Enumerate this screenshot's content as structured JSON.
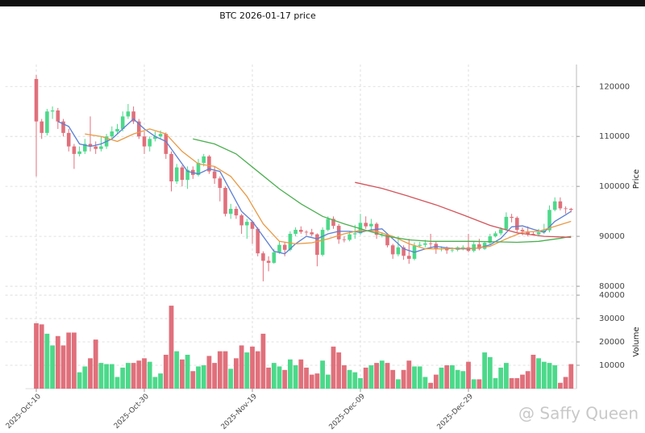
{
  "chart_data": {
    "type": "candlestick",
    "title": "BTC  2026-01-17  price",
    "ylabel": "Price",
    "volume_label": "Volume",
    "watermark": "@ Saffy Queen",
    "x": [
      "2025-10-10",
      "2025-10-11",
      "2025-10-12",
      "2025-10-13",
      "2025-10-14",
      "2025-10-15",
      "2025-10-16",
      "2025-10-17",
      "2025-10-18",
      "2025-10-19",
      "2025-10-20",
      "2025-10-21",
      "2025-10-22",
      "2025-10-23",
      "2025-10-24",
      "2025-10-25",
      "2025-10-26",
      "2025-10-27",
      "2025-10-28",
      "2025-10-29",
      "2025-10-30",
      "2025-10-31",
      "2025-11-01",
      "2025-11-02",
      "2025-11-03",
      "2025-11-04",
      "2025-11-05",
      "2025-11-06",
      "2025-11-07",
      "2025-11-08",
      "2025-11-09",
      "2025-11-10",
      "2025-11-11",
      "2025-11-12",
      "2025-11-13",
      "2025-11-14",
      "2025-11-15",
      "2025-11-16",
      "2025-11-17",
      "2025-11-18",
      "2025-11-19",
      "2025-11-20",
      "2025-11-21",
      "2025-11-22",
      "2025-11-23",
      "2025-11-24",
      "2025-11-25",
      "2025-11-26",
      "2025-11-27",
      "2025-11-28",
      "2025-11-29",
      "2025-11-30",
      "2025-12-01",
      "2025-12-02",
      "2025-12-03",
      "2025-12-04",
      "2025-12-05",
      "2025-12-06",
      "2025-12-07",
      "2025-12-08",
      "2025-12-09",
      "2025-12-10",
      "2025-12-11",
      "2025-12-12",
      "2025-12-13",
      "2025-12-14",
      "2025-12-15",
      "2025-12-16",
      "2025-12-17",
      "2025-12-18",
      "2025-12-19",
      "2025-12-20",
      "2025-12-21",
      "2025-12-22",
      "2025-12-23",
      "2025-12-24",
      "2025-12-25",
      "2025-12-26",
      "2025-12-27",
      "2025-12-28",
      "2025-12-29",
      "2025-12-30",
      "2025-12-31",
      "2026-01-01",
      "2026-01-02",
      "2026-01-03",
      "2026-01-04",
      "2026-01-05",
      "2026-01-06",
      "2026-01-07",
      "2026-01-08",
      "2026-01-09",
      "2026-01-10",
      "2026-01-11",
      "2026-01-12",
      "2026-01-13",
      "2026-01-14",
      "2026-01-15",
      "2026-01-16",
      "2026-01-17"
    ],
    "open": [
      121500,
      113000,
      110700,
      115000,
      115200,
      113000,
      110700,
      108000,
      106500,
      107000,
      108500,
      108000,
      107500,
      108000,
      110000,
      111000,
      111500,
      114000,
      115000,
      113000,
      110000,
      108000,
      109500,
      110000,
      110500,
      106500,
      101000,
      103800,
      101300,
      103300,
      102300,
      104700,
      106000,
      103000,
      101600,
      99700,
      94500,
      95500,
      94200,
      92200,
      92900,
      91500,
      86600,
      85100,
      84700,
      86800,
      88300,
      87300,
      90500,
      91300,
      90900,
      90800,
      90400,
      86300,
      91300,
      93500,
      92100,
      89400,
      89300,
      90400,
      90600,
      92700,
      92000,
      92500,
      90300,
      90300,
      88200,
      86400,
      87800,
      86100,
      85500,
      88100,
      88300,
      88600,
      88500,
      87400,
      87600,
      87200,
      87300,
      87800,
      87800,
      87100,
      88400,
      87500,
      88700,
      90000,
      90600,
      91400,
      93900,
      93700,
      91300,
      91000,
      90500,
      90400,
      90800,
      91200,
      95300,
      97000,
      95600,
      95500
    ],
    "high": [
      122300,
      113500,
      115500,
      116000,
      115700,
      113500,
      111500,
      108500,
      108000,
      109500,
      114000,
      109000,
      110000,
      110500,
      112000,
      112500,
      115000,
      116500,
      116000,
      113500,
      111000,
      110000,
      111000,
      111200,
      110800,
      107000,
      104500,
      104200,
      104000,
      104000,
      105500,
      106500,
      106300,
      104000,
      102000,
      100000,
      96500,
      96000,
      94500,
      93500,
      93000,
      91800,
      87000,
      86000,
      87500,
      89000,
      88800,
      91000,
      91800,
      92000,
      91200,
      91500,
      90600,
      91800,
      94000,
      94000,
      92500,
      90000,
      91000,
      92300,
      94500,
      94000,
      93500,
      92800,
      90800,
      90600,
      88500,
      90000,
      88200,
      89500,
      88800,
      88900,
      89300,
      90500,
      89000,
      88000,
      88000,
      87800,
      88000,
      88200,
      90500,
      89000,
      89500,
      89000,
      90500,
      91000,
      91800,
      94800,
      94500,
      94000,
      91800,
      92000,
      91000,
      91500,
      92500,
      96200,
      97800,
      97800,
      96000,
      95700
    ],
    "low": [
      102000,
      109500,
      110200,
      113500,
      111500,
      110000,
      107000,
      103500,
      106000,
      106500,
      107000,
      106500,
      107000,
      107500,
      109500,
      110500,
      111000,
      113500,
      112500,
      109500,
      106500,
      107000,
      109000,
      109500,
      105500,
      99000,
      100500,
      100000,
      99500,
      101500,
      102000,
      104000,
      102500,
      100500,
      97000,
      94000,
      93500,
      93500,
      90500,
      89500,
      88500,
      86000,
      81000,
      83000,
      84500,
      86500,
      86000,
      87000,
      90000,
      90500,
      90200,
      90000,
      84000,
      86000,
      91000,
      91500,
      88500,
      88800,
      89000,
      89500,
      90300,
      91500,
      91000,
      89500,
      89800,
      87800,
      85500,
      86000,
      85300,
      84500,
      85200,
      87800,
      87800,
      87500,
      86500,
      87000,
      86500,
      86800,
      87000,
      87200,
      86800,
      86800,
      87200,
      87300,
      88400,
      89800,
      90200,
      91200,
      92800,
      90800,
      90200,
      90000,
      90200,
      90100,
      90500,
      90800,
      95000,
      95200,
      94500,
      94800
    ],
    "close": [
      113000,
      110700,
      115000,
      115200,
      113000,
      110700,
      108000,
      106500,
      107000,
      108500,
      108000,
      107500,
      108000,
      110000,
      111000,
      111500,
      114000,
      115000,
      113000,
      110000,
      108000,
      109500,
      110000,
      110500,
      106500,
      101000,
      103800,
      101300,
      103300,
      102300,
      104700,
      106000,
      103000,
      101600,
      99700,
      94500,
      95500,
      94200,
      92200,
      92900,
      91500,
      86600,
      85100,
      84700,
      86800,
      88300,
      87300,
      90500,
      91300,
      90900,
      90800,
      90400,
      86300,
      91300,
      93500,
      92100,
      89400,
      89300,
      90400,
      90600,
      92700,
      92000,
      92500,
      90300,
      90300,
      88200,
      86400,
      87800,
      86100,
      85500,
      88100,
      88300,
      88600,
      88500,
      87400,
      87600,
      87200,
      87300,
      87800,
      87800,
      87100,
      88400,
      87500,
      88700,
      90000,
      90600,
      91400,
      93900,
      93700,
      91300,
      91000,
      90500,
      90400,
      90800,
      91200,
      95300,
      97000,
      95600,
      95500,
      95300
    ],
    "volume": [
      28000,
      27500,
      23500,
      18500,
      22500,
      18500,
      24000,
      24000,
      7000,
      9500,
      13000,
      21000,
      11000,
      10500,
      10500,
      5000,
      9000,
      11000,
      11000,
      12000,
      13000,
      11500,
      5000,
      6500,
      14500,
      35500,
      16000,
      12500,
      14500,
      7500,
      9500,
      10000,
      14000,
      11000,
      16000,
      16000,
      8500,
      13000,
      18500,
      15500,
      18000,
      16000,
      23500,
      9000,
      11000,
      9500,
      8000,
      12500,
      10000,
      12500,
      9000,
      6000,
      6500,
      12000,
      6000,
      18000,
      15500,
      10000,
      8000,
      7000,
      4500,
      9000,
      10000,
      11000,
      12000,
      11000,
      8000,
      4000,
      8000,
      12000,
      9500,
      9500,
      5000,
      2500,
      6000,
      9000,
      10000,
      10000,
      8000,
      7500,
      11500,
      4000,
      4000,
      15500,
      13500,
      4500,
      9000,
      11000,
      4500,
      4500,
      6000,
      7500,
      14500,
      13000,
      11500,
      11000,
      10000,
      2500,
      5000,
      10500
    ],
    "up_color": "#4cd98a",
    "down_color": "#e0707b",
    "series": [
      {
        "color": "#5b7fd4",
        "x": [
          "2025-10-14",
          "2025-10-16",
          "2025-10-18",
          "2025-10-20",
          "2025-10-22",
          "2025-10-24",
          "2025-10-26",
          "2025-10-28",
          "2025-10-30",
          "2025-11-01",
          "2025-11-03",
          "2025-11-05",
          "2025-11-07",
          "2025-11-09",
          "2025-11-11",
          "2025-11-13",
          "2025-11-15",
          "2025-11-17",
          "2025-11-19",
          "2025-11-21",
          "2025-11-23",
          "2025-11-25",
          "2025-11-27",
          "2025-11-29",
          "2025-12-01",
          "2025-12-03",
          "2025-12-05",
          "2025-12-07",
          "2025-12-09",
          "2025-12-11",
          "2025-12-13",
          "2025-12-15",
          "2025-12-17",
          "2025-12-19",
          "2025-12-21",
          "2025-12-23",
          "2025-12-25",
          "2025-12-27",
          "2025-12-29",
          "2025-12-31",
          "2026-01-02",
          "2026-01-04",
          "2026-01-06",
          "2026-01-08",
          "2026-01-10",
          "2026-01-12",
          "2026-01-14",
          "2026-01-16",
          "2026-01-17"
        ],
        "values": [
          113000,
          112000,
          108500,
          108000,
          108500,
          109500,
          111500,
          113500,
          111500,
          110000,
          109000,
          106000,
          103000,
          102500,
          103500,
          103000,
          99000,
          95000,
          93000,
          90000,
          87000,
          86500,
          88500,
          90000,
          89500,
          90500,
          91000,
          91000,
          90800,
          91300,
          91500,
          89500,
          87500,
          86800,
          87500,
          88000,
          87700,
          87500,
          87500,
          87700,
          88300,
          89600,
          91900,
          92100,
          91400,
          90800,
          93000,
          94300,
          95000
        ]
      },
      {
        "color": "#e89a45",
        "x": [
          "2025-10-19",
          "2025-10-22",
          "2025-10-25",
          "2025-10-28",
          "2025-10-31",
          "2025-11-03",
          "2025-11-06",
          "2025-11-09",
          "2025-11-12",
          "2025-11-15",
          "2025-11-18",
          "2025-11-21",
          "2025-11-24",
          "2025-11-27",
          "2025-11-30",
          "2025-12-03",
          "2025-12-06",
          "2025-12-09",
          "2025-12-12",
          "2025-12-15",
          "2025-12-18",
          "2025-12-21",
          "2025-12-24",
          "2025-12-27",
          "2025-12-30",
          "2026-01-02",
          "2026-01-05",
          "2026-01-08",
          "2026-01-11",
          "2026-01-14",
          "2026-01-17"
        ],
        "values": [
          110500,
          110000,
          109000,
          110500,
          111500,
          110500,
          107000,
          104500,
          104000,
          102000,
          98000,
          92500,
          89000,
          88500,
          88700,
          89500,
          90500,
          91200,
          91000,
          90000,
          88500,
          87500,
          87500,
          87600,
          87600,
          88000,
          89500,
          90800,
          91000,
          92000,
          93000
        ]
      },
      {
        "color": "#4caf50",
        "x": [
          "2025-11-08",
          "2025-11-12",
          "2025-11-16",
          "2025-11-20",
          "2025-11-24",
          "2025-11-28",
          "2025-12-02",
          "2025-12-06",
          "2025-12-10",
          "2025-12-14",
          "2025-12-18",
          "2025-12-22",
          "2025-12-26",
          "2025-12-30",
          "2026-01-03",
          "2026-01-07",
          "2026-01-11",
          "2026-01-15",
          "2026-01-17"
        ],
        "values": [
          109500,
          108500,
          106500,
          103000,
          99500,
          96500,
          94000,
          92500,
          91200,
          90000,
          89300,
          89000,
          89000,
          89000,
          88900,
          88800,
          89000,
          89600,
          90000
        ]
      },
      {
        "color": "#d2545a",
        "x": [
          "2025-12-08",
          "2025-12-13",
          "2025-12-18",
          "2025-12-23",
          "2025-12-28",
          "2026-01-02",
          "2026-01-07",
          "2026-01-12",
          "2026-01-17"
        ],
        "values": [
          100800,
          99600,
          98000,
          96300,
          94300,
          92200,
          90700,
          90000,
          89800
        ]
      }
    ],
    "xlim": [
      "2025-10-08",
      "2026-01-18"
    ],
    "xticks": [
      {
        "value": "2025-10-10",
        "label": "2025-Oct-10"
      },
      {
        "value": "2025-10-30",
        "label": "2025-Oct-30"
      },
      {
        "value": "2025-11-19",
        "label": "2025-Nov-19"
      },
      {
        "value": "2025-12-09",
        "label": "2025-Dec-09"
      },
      {
        "value": "2025-12-29",
        "label": "2025-Dec-29"
      }
    ],
    "ylim": [
      79200,
      124400
    ],
    "yticks": [
      80000,
      90000,
      100000,
      110000,
      120000
    ],
    "volume_ylim": [
      0,
      41400
    ],
    "volume_yticks": [
      10000,
      20000,
      30000,
      40000
    ],
    "grid": true
  }
}
